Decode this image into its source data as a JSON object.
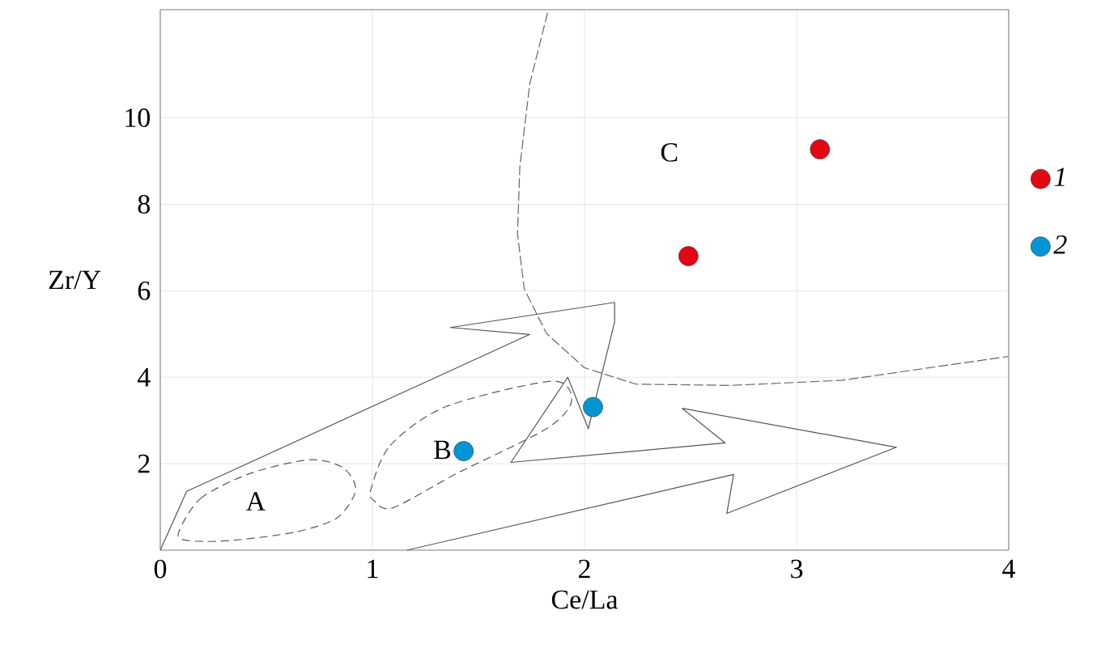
{
  "chart_data": {
    "type": "scatter",
    "xlabel": "Ce/La",
    "ylabel": "Zr/Y",
    "xlim": [
      0,
      4
    ],
    "ylim": [
      0,
      12.5
    ],
    "xticks": [
      0,
      1,
      2,
      3,
      4
    ],
    "yticks": [
      2,
      4,
      6,
      8,
      10
    ],
    "grid": true,
    "legend": "right",
    "marker": "circle",
    "series": [
      {
        "type": "line",
        "color": "#555555",
        "line_style": "solid",
        "marker": "none",
        "x": [
          0,
          0.124,
          1.742,
          1.368,
          2.142,
          2.142,
          2.018,
          1.921,
          1.653,
          2.663,
          2.461,
          3.471,
          2.671,
          2.703,
          1.163
        ],
        "values": [
          0,
          1.36,
          4.99,
          5.15,
          5.73,
          5.28,
          2.81,
          4.0,
          2.03,
          2.48,
          3.28,
          2.38,
          0.85,
          1.75,
          0
        ]
      },
      {
        "type": "line",
        "color": "#666666",
        "line_style": "dashed",
        "marker": "none",
        "x": [
          1.826,
          1.742,
          1.695,
          1.684,
          1.716,
          1.821,
          2.0,
          2.242,
          2.689,
          3.216,
          3.997
        ],
        "values": [
          12.43,
          10.79,
          8.86,
          7.32,
          6.04,
          5.01,
          4.22,
          3.84,
          3.81,
          3.93,
          4.48
        ]
      },
      {
        "name": "1",
        "color": "#e30613",
        "x": [
          3.11,
          2.49
        ],
        "values": [
          9.27,
          6.8
        ]
      },
      {
        "name": "2",
        "color": "#0096d6",
        "x": [
          1.43,
          2.04
        ],
        "values": [
          2.29,
          3.31
        ]
      }
    ],
    "annotations": [
      "A",
      "B",
      "C"
    ]
  }
}
